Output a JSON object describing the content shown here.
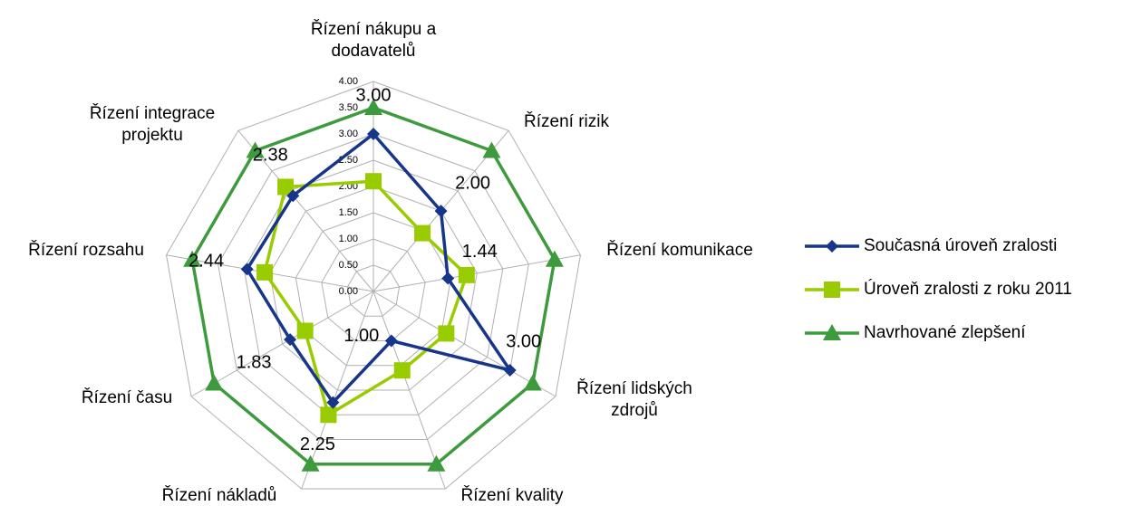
{
  "chart_data": {
    "type": "radar",
    "categories": [
      "Řízení nákupu a dodavatelů",
      "Řízení rizik",
      "Řízení komunikace",
      "Řízení lidských zdrojů",
      "Řízení kvality",
      "Řízení nákladů",
      "Řízení času",
      "Řízení rozsahu",
      "Řízení integrace projektu"
    ],
    "rlim": [
      0,
      4
    ],
    "rticks": [
      {
        "value": 0,
        "label": "0.00"
      },
      {
        "value": 0.5,
        "label": "0.50"
      },
      {
        "value": 1,
        "label": "1.00"
      },
      {
        "value": 1.5,
        "label": "1.50"
      },
      {
        "value": 2,
        "label": "2.00"
      },
      {
        "value": 2.5,
        "label": "2.50"
      },
      {
        "value": 3,
        "label": "3.00"
      },
      {
        "value": 3.5,
        "label": "3.50"
      },
      {
        "value": 4,
        "label": "4.00"
      }
    ],
    "grid": true,
    "legend": "right",
    "series": [
      {
        "name": "Současná úroveň zralosti",
        "color": "#17368a",
        "marker": "diamond",
        "values": [
          3,
          2,
          1.44,
          3,
          1,
          2.25,
          1.83,
          2.44,
          2.38
        ],
        "value_labels": [
          "3.00",
          "2.00",
          "1.44",
          "3.00",
          "1.00",
          "2.25",
          "1.83",
          "2.44",
          "2.38"
        ]
      },
      {
        "name": "Úroveň zralosti z roku 2011",
        "color": "#99cc00",
        "marker": "square",
        "values": [
          2.1,
          1.45,
          1.8,
          1.6,
          1.6,
          2.5,
          1.5,
          2.1,
          2.6
        ]
      },
      {
        "name": "Navrhované zlepšení",
        "color": "#3d9a3d",
        "marker": "triangle",
        "values": [
          3.5,
          3.5,
          3.5,
          3.5,
          3.5,
          3.5,
          3.5,
          3.5,
          3.5
        ]
      }
    ]
  }
}
